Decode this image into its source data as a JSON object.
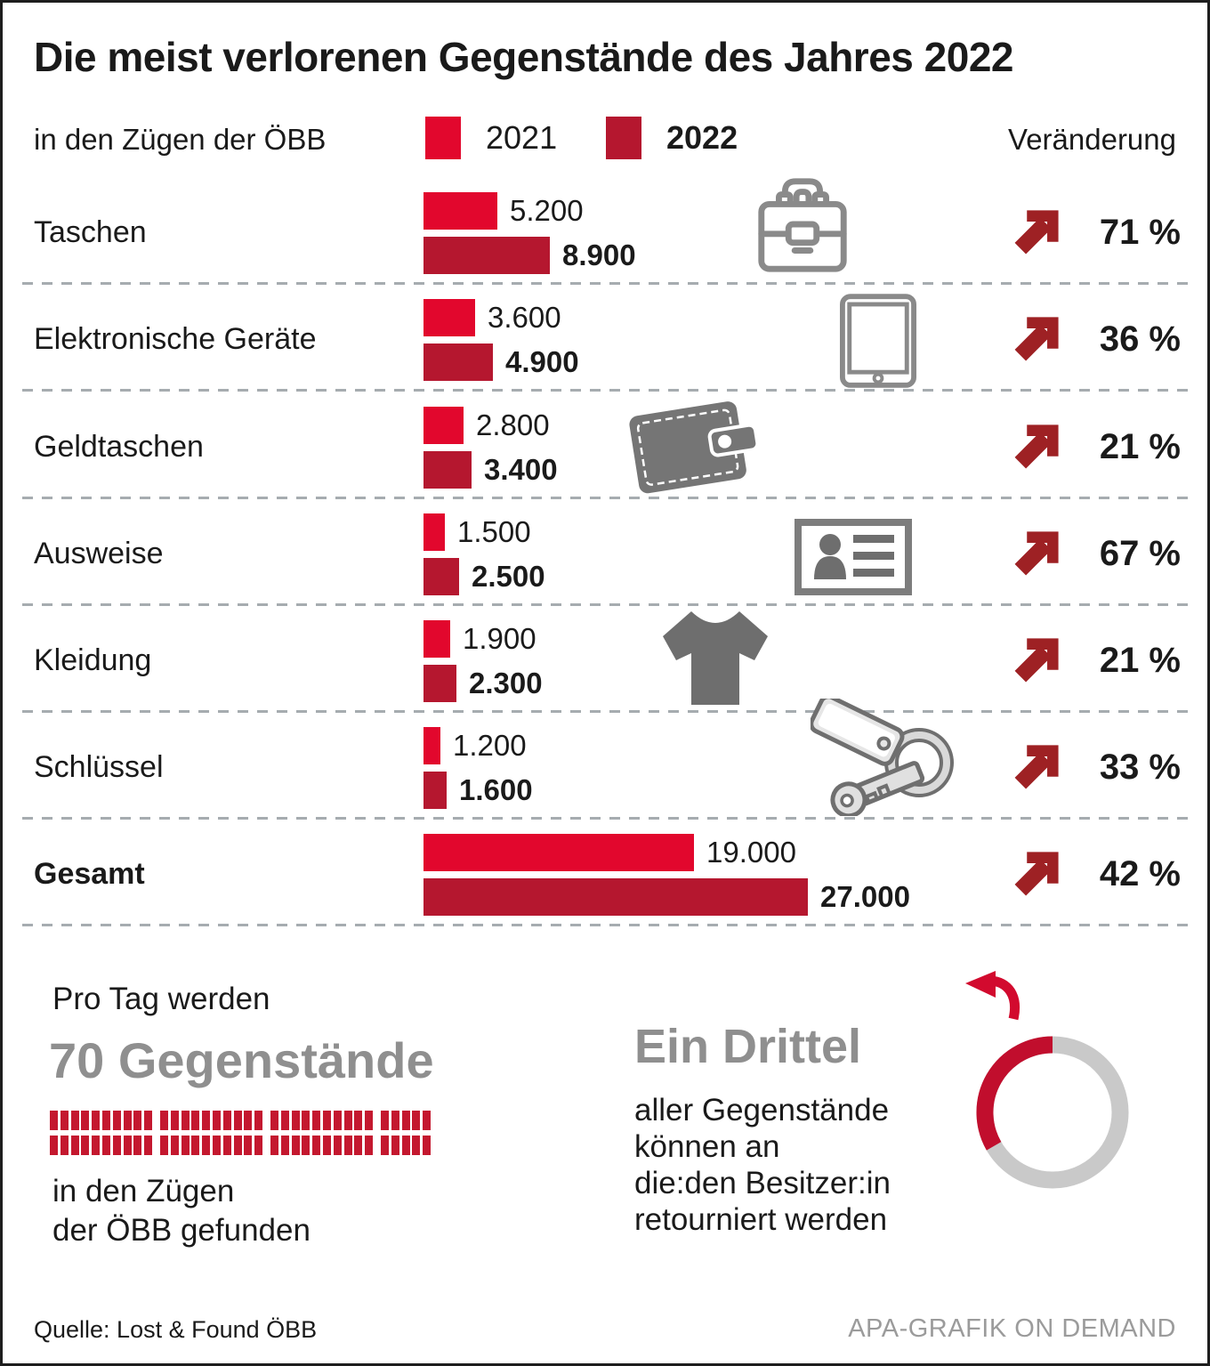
{
  "title": "Die meist verlorenen Gegenstände des Jahres 2022",
  "subtitle": "in den Zügen der ÖBB",
  "change_header": "Veränderung",
  "colors": {
    "text": "#1a1a1a",
    "red2021": "#e2072d",
    "red2022": "#b5172f",
    "changeArrow": "#9e2124",
    "units": "#c4182f",
    "donutRed": "#c10e2d",
    "donutGray": "#c9c9c9",
    "curvedArrow": "#d20a2e",
    "grayHeadline": "#8f8f8f",
    "iconOutline": "#8a8a8a",
    "iconSolid": "#6e6e6e",
    "walletGray": "#757575",
    "keysOutline": "#6f6f6f",
    "dash": "#a6acb0",
    "credit": "#9b9b9b"
  },
  "chart_data": {
    "type": "bar",
    "orientation": "horizontal",
    "title": "Die meist verlorenen Gegenstände des Jahres 2022",
    "subtitle": "in den Zügen der ÖBB",
    "legend_position": "top",
    "grid": false,
    "categories": [
      "Taschen",
      "Elektronische Geräte",
      "Geldtaschen",
      "Ausweise",
      "Kleidung",
      "Schlüssel",
      "Gesamt"
    ],
    "icons": [
      "briefcase-icon",
      "tablet-icon",
      "wallet-icon",
      "id-card-icon",
      "tshirt-icon",
      "keys-icon",
      null
    ],
    "series": [
      {
        "name": "2021",
        "values": [
          5200,
          3600,
          2800,
          1500,
          1900,
          1200,
          19000
        ],
        "labels": [
          "5.200",
          "3.600",
          "2.800",
          "1.500",
          "1.900",
          "1.200",
          "19.000"
        ],
        "color": "#e2072d"
      },
      {
        "name": "2022",
        "values": [
          8900,
          4900,
          3400,
          2500,
          2300,
          1600,
          27000
        ],
        "labels": [
          "8.900",
          "4.900",
          "3.400",
          "2.500",
          "2.300",
          "1.600",
          "27.000"
        ],
        "color": "#b5172f"
      }
    ],
    "change_percent": [
      71,
      36,
      21,
      67,
      21,
      33,
      42
    ],
    "change_labels": [
      "71 %",
      "36 %",
      "21 %",
      "67 %",
      "21 %",
      "33 %",
      "42 %"
    ]
  },
  "per_day": {
    "intro": "Pro Tag werden",
    "headline": "70 Gegenstände",
    "count": 70,
    "rows": 2,
    "group_size": 10,
    "lines": [
      "in den Zügen",
      "der ÖBB gefunden"
    ]
  },
  "returned": {
    "headline": "Ein Drittel",
    "fraction": 0.333,
    "lines": [
      "aller Gegenstände",
      "können an",
      "die:den Besitzer:in",
      "retourniert werden"
    ]
  },
  "footer": {
    "source": "Quelle: Lost & Found ÖBB",
    "credit": "APA-GRAFIK ON DEMAND"
  }
}
